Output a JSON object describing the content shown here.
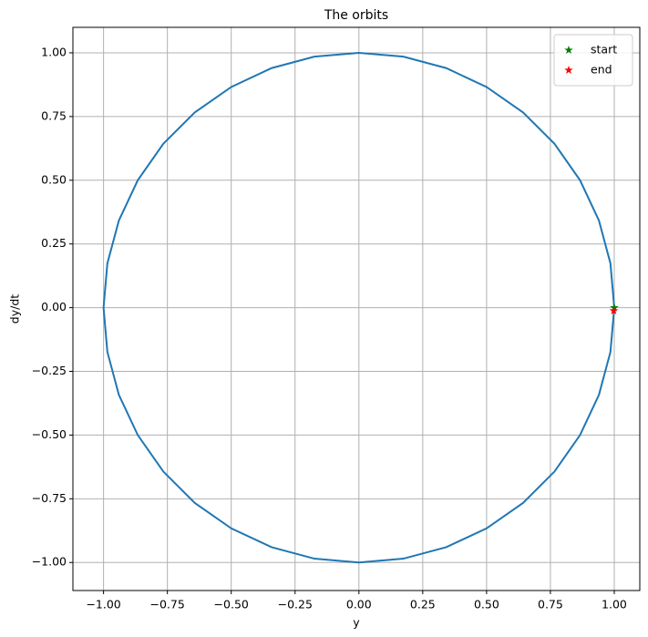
{
  "chart_data": {
    "type": "line",
    "title": "The orbits",
    "x_label": "y",
    "y_label": "dy/dt",
    "xlim": [
      -1.12,
      1.1
    ],
    "ylim": [
      -1.11,
      1.1
    ],
    "grid": true,
    "legend": "upper right",
    "xticks": [
      {
        "value": -1.0,
        "label": "−1.00"
      },
      {
        "value": -0.75,
        "label": "−0.75"
      },
      {
        "value": -0.5,
        "label": "−0.50"
      },
      {
        "value": -0.25,
        "label": "−0.25"
      },
      {
        "value": 0,
        "label": "0.00"
      },
      {
        "value": 0.25,
        "label": "0.25"
      },
      {
        "value": 0.5,
        "label": "0.50"
      },
      {
        "value": 0.75,
        "label": "0.75"
      },
      {
        "value": 1.0,
        "label": "1.00"
      }
    ],
    "yticks": [
      {
        "value": -1.0,
        "label": "−1.00"
      },
      {
        "value": -0.75,
        "label": "−0.75"
      },
      {
        "value": -0.5,
        "label": "−0.50"
      },
      {
        "value": -0.25,
        "label": "−0.25"
      },
      {
        "value": 0,
        "label": "0.00"
      },
      {
        "value": 0.25,
        "label": "0.25"
      },
      {
        "value": 0.5,
        "label": "0.50"
      },
      {
        "value": 0.75,
        "label": "0.75"
      },
      {
        "value": 1.0,
        "label": "1.00"
      }
    ],
    "series": [
      {
        "color": "#1f77b4",
        "x": [
          1,
          0.985,
          0.94,
          0.866,
          0.766,
          0.643,
          0.5,
          0.342,
          0.174,
          0,
          -0.174,
          -0.342,
          -0.5,
          -0.643,
          -0.766,
          -0.866,
          -0.94,
          -0.985,
          -1,
          -0.985,
          -0.94,
          -0.866,
          -0.766,
          -0.643,
          -0.5,
          -0.342,
          -0.174,
          0,
          0.174,
          0.342,
          0.5,
          0.643,
          0.766,
          0.866,
          0.94,
          0.985,
          1
        ],
        "y": [
          0,
          0.174,
          0.342,
          0.5,
          0.643,
          0.766,
          0.866,
          0.94,
          0.985,
          1,
          0.985,
          0.94,
          0.866,
          0.766,
          0.643,
          0.5,
          0.342,
          0.174,
          0,
          -0.174,
          -0.342,
          -0.5,
          -0.643,
          -0.766,
          -0.866,
          -0.94,
          -0.985,
          -1,
          -0.985,
          -0.94,
          -0.866,
          -0.766,
          -0.643,
          -0.5,
          -0.342,
          -0.174,
          0
        ]
      },
      {
        "name": "start",
        "color": "green",
        "marker": "star",
        "x": [
          1.0
        ],
        "y": [
          0.0
        ]
      },
      {
        "name": "end",
        "color": "red",
        "marker": "star",
        "x": [
          0.998
        ],
        "y": [
          -0.012
        ]
      }
    ]
  }
}
